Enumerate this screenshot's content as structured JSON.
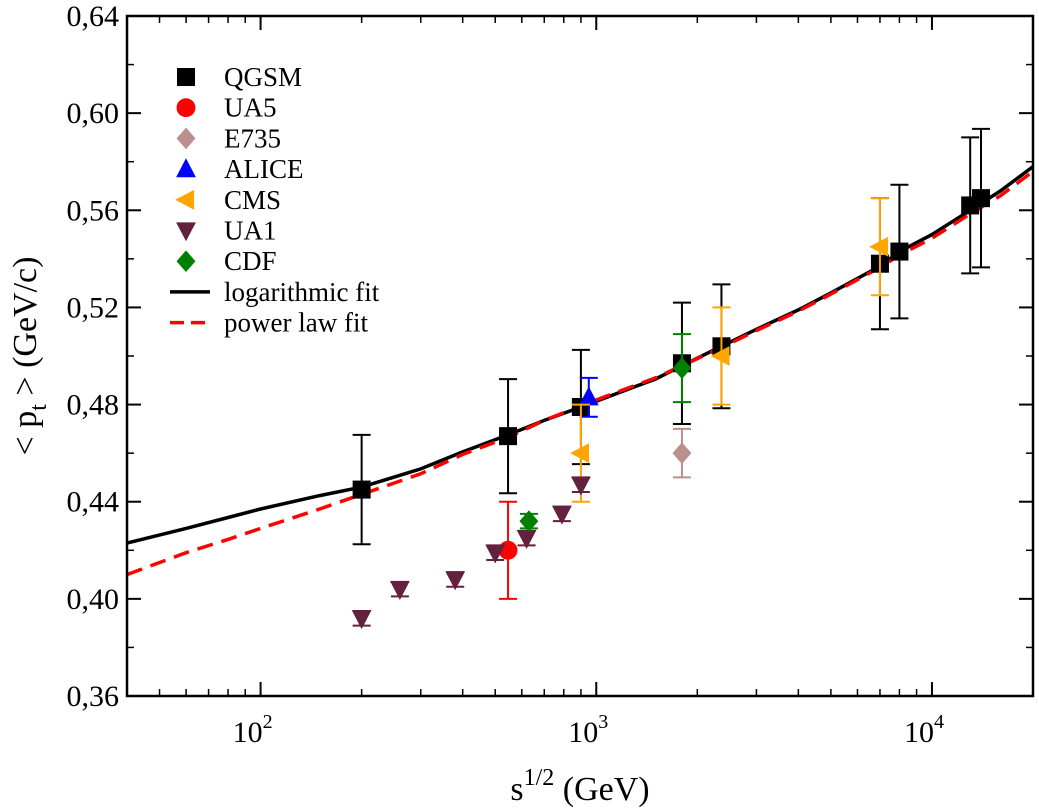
{
  "chart_data": {
    "type": "scatter",
    "title": "",
    "xlabel": {
      "base": "s",
      "sup": "1/2",
      "unit": " (GeV)"
    },
    "ylabel": {
      "open": "< p",
      "sub": "t",
      "close": " > (GeV/c)"
    },
    "x_scale": "log",
    "xlim": [
      40,
      20000
    ],
    "ylim": [
      0.36,
      0.64
    ],
    "x_ticks": [
      {
        "value": 100,
        "base": "10",
        "exp": "2"
      },
      {
        "value": 1000,
        "base": "10",
        "exp": "3"
      },
      {
        "value": 10000,
        "base": "10",
        "exp": "4"
      }
    ],
    "y_ticks": [
      {
        "value": 0.36,
        "label": "0,36"
      },
      {
        "value": 0.4,
        "label": "0,40"
      },
      {
        "value": 0.44,
        "label": "0,44"
      },
      {
        "value": 0.48,
        "label": "0,48"
      },
      {
        "value": 0.52,
        "label": "0,52"
      },
      {
        "value": 0.56,
        "label": "0,56"
      },
      {
        "value": 0.6,
        "label": "0,60"
      },
      {
        "value": 0.64,
        "label": "0,64"
      }
    ],
    "legend_position": "top-left",
    "series": [
      {
        "name": "QGSM",
        "marker": "square",
        "color": "#000000",
        "error_color": "#000000",
        "points": [
          {
            "x": 200,
            "y": 0.445,
            "err": 0.0225
          },
          {
            "x": 546,
            "y": 0.467,
            "err": 0.0235
          },
          {
            "x": 900,
            "y": 0.479,
            "err": 0.0235
          },
          {
            "x": 1800,
            "y": 0.497,
            "err": 0.025
          },
          {
            "x": 2360,
            "y": 0.504,
            "err": 0.0255
          },
          {
            "x": 7000,
            "y": 0.538,
            "err": 0.027
          },
          {
            "x": 8000,
            "y": 0.543,
            "err": 0.0275
          },
          {
            "x": 13000,
            "y": 0.562,
            "err": 0.028
          },
          {
            "x": 14000,
            "y": 0.565,
            "err": 0.0285
          }
        ]
      },
      {
        "name": "UA5",
        "marker": "circle",
        "color": "#ff0000",
        "error_color": "#ff0000",
        "points": [
          {
            "x": 546,
            "y": 0.42,
            "err": 0.02
          }
        ]
      },
      {
        "name": "E735",
        "marker": "diamond",
        "color": "#bc8f8f",
        "error_color": "#bc8f8f",
        "points": [
          {
            "x": 1800,
            "y": 0.46,
            "err": 0.01
          }
        ]
      },
      {
        "name": "ALICE",
        "marker": "triangle-up",
        "color": "#0000ff",
        "error_color": "#0000ff",
        "points": [
          {
            "x": 950,
            "y": 0.483,
            "err": 0.008
          }
        ]
      },
      {
        "name": "CMS",
        "marker": "triangle-left",
        "color": "#ffa500",
        "error_color": "#ffa500",
        "points": [
          {
            "x": 900,
            "y": 0.46,
            "err": 0.02
          },
          {
            "x": 2360,
            "y": 0.5,
            "err": 0.02
          },
          {
            "x": 7000,
            "y": 0.545,
            "err": 0.02
          }
        ]
      },
      {
        "name": "UA1",
        "marker": "triangle-down",
        "color": "#63203f",
        "error_color": "#63203f",
        "points": [
          {
            "x": 200,
            "y": 0.392,
            "err": 0.003
          },
          {
            "x": 260,
            "y": 0.404,
            "err": 0.003
          },
          {
            "x": 380,
            "y": 0.408,
            "err": 0.003
          },
          {
            "x": 500,
            "y": 0.419,
            "err": 0.003
          },
          {
            "x": 620,
            "y": 0.425,
            "err": 0.003
          },
          {
            "x": 790,
            "y": 0.435,
            "err": 0.003
          },
          {
            "x": 900,
            "y": 0.447,
            "err": 0.003
          }
        ]
      },
      {
        "name": "CDF",
        "marker": "diamond",
        "color": "#008000",
        "error_color": "#008000",
        "points": [
          {
            "x": 630,
            "y": 0.432,
            "err": 0.003
          },
          {
            "x": 1800,
            "y": 0.495,
            "err": 0.014
          }
        ]
      }
    ],
    "curves": [
      {
        "name": "logarithmic fit",
        "style": "solid",
        "color": "#000000",
        "x": [
          40,
          60,
          80,
          100,
          150,
          200,
          300,
          400,
          546,
          700,
          900,
          1200,
          1500,
          1800,
          2360,
          3000,
          4000,
          5000,
          7000,
          8000,
          10000,
          13000,
          16000,
          20000
        ],
        "y": [
          0.423,
          0.429,
          0.4335,
          0.437,
          0.4425,
          0.446,
          0.4535,
          0.4605,
          0.4675,
          0.4735,
          0.479,
          0.4855,
          0.4905,
          0.496,
          0.504,
          0.511,
          0.519,
          0.526,
          0.537,
          0.543,
          0.55,
          0.56,
          0.568,
          0.578
        ]
      },
      {
        "name": "power law fit",
        "style": "dashed",
        "color": "#ff0000",
        "x": [
          40,
          60,
          80,
          100,
          150,
          200,
          300,
          400,
          546,
          700,
          900,
          1200,
          1500,
          1800,
          2360,
          3000,
          4000,
          5000,
          7000,
          8000,
          10000,
          13000,
          16000,
          20000
        ],
        "y": [
          0.41,
          0.419,
          0.4245,
          0.429,
          0.437,
          0.443,
          0.4515,
          0.4595,
          0.4665,
          0.4735,
          0.4795,
          0.486,
          0.491,
          0.496,
          0.5035,
          0.5105,
          0.5185,
          0.5255,
          0.5365,
          0.5415,
          0.5485,
          0.5585,
          0.566,
          0.576
        ]
      }
    ]
  }
}
